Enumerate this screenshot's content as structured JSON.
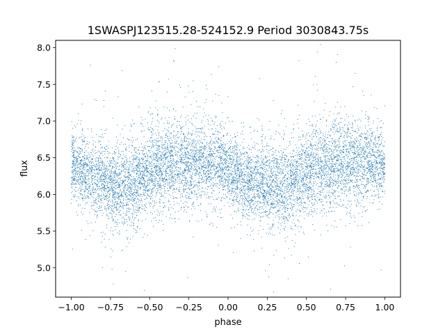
{
  "chart_data": {
    "type": "scatter",
    "title": "1SWASPJ123515.28-524152.9 Period 3030843.75s",
    "xlabel": "phase",
    "ylabel": "flux",
    "xlim": [
      -1.1,
      1.1
    ],
    "ylim": [
      4.6,
      8.1
    ],
    "x_ticks": [
      -1.0,
      -0.75,
      -0.5,
      -0.25,
      0.0,
      0.25,
      0.5,
      0.75,
      1.0
    ],
    "x_tick_labels": [
      "−1.00",
      "−0.75",
      "−0.50",
      "−0.25",
      "0.00",
      "0.25",
      "0.50",
      "0.75",
      "1.00"
    ],
    "y_ticks": [
      5.0,
      5.5,
      6.0,
      6.5,
      7.0,
      7.5,
      8.0
    ],
    "y_tick_labels": [
      "5.0",
      "5.5",
      "6.0",
      "6.5",
      "7.0",
      "7.5",
      "8.0"
    ],
    "marker_color": "#1f77b4",
    "grid": false,
    "legend": "none",
    "series": [
      {
        "x_range": [
          -1.0,
          1.0
        ],
        "point_count": 9000,
        "trend": {
          "phase": [
            -1.0,
            -0.9,
            -0.8,
            -0.7,
            -0.6,
            -0.5,
            -0.4,
            -0.3,
            -0.2,
            -0.1,
            0.0,
            0.1,
            0.2,
            0.3,
            0.4,
            0.5,
            0.6,
            0.7,
            0.8,
            0.9,
            1.0
          ],
          "median_flux": [
            6.4,
            6.3,
            6.18,
            6.1,
            6.15,
            6.32,
            6.38,
            6.45,
            6.42,
            6.45,
            6.35,
            6.2,
            6.15,
            6.08,
            6.12,
            6.3,
            6.38,
            6.45,
            6.42,
            6.45,
            6.4
          ],
          "spread": [
            0.22,
            0.25,
            0.28,
            0.3,
            0.3,
            0.3,
            0.3,
            0.3,
            0.28,
            0.28,
            0.25,
            0.25,
            0.28,
            0.3,
            0.3,
            0.3,
            0.3,
            0.3,
            0.28,
            0.28,
            0.22
          ]
        }
      }
    ]
  }
}
